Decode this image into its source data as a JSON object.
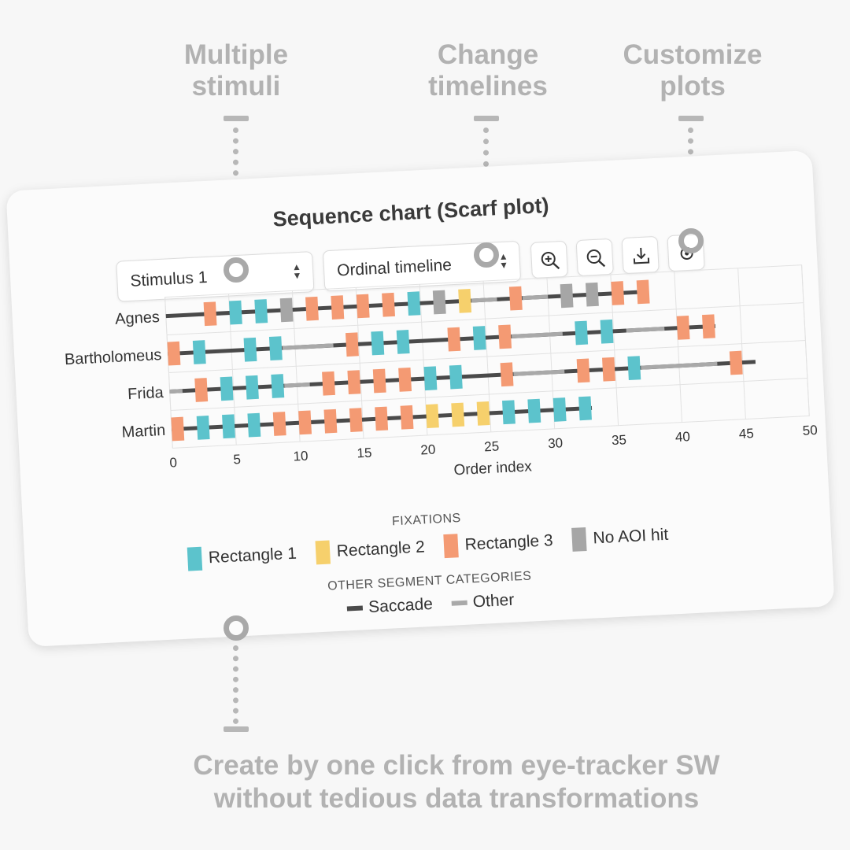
{
  "callouts": {
    "multiple": [
      "Multiple",
      "stimuli"
    ],
    "change": [
      "Change",
      "timelines"
    ],
    "customize": [
      "Customize",
      "plots"
    ],
    "bottom": [
      "Create by one click from eye-tracker SW",
      "without tedious data transformations"
    ]
  },
  "card": {
    "title": "Sequence chart (Scarf plot)",
    "stimulus_select": {
      "value": "Stimulus 1"
    },
    "timeline_select": {
      "value": "Ordinal timeline"
    },
    "buttons": [
      "zoom-in",
      "zoom-out",
      "download",
      "settings"
    ]
  },
  "chart_data": {
    "type": "scarf",
    "xlabel": "Order index",
    "xlim": [
      0,
      50
    ],
    "xticks": [
      0,
      5,
      10,
      15,
      20,
      25,
      30,
      35,
      40,
      45,
      50
    ],
    "participants": [
      "Agnes",
      "Bartholomeus",
      "Frida",
      "Martin"
    ],
    "categories": {
      "r1": {
        "name": "Rectangle 1",
        "color": "#5cc3cc"
      },
      "r2": {
        "name": "Rectangle 2",
        "color": "#f6d06c"
      },
      "r3": {
        "name": "Rectangle 3",
        "color": "#f49a73"
      },
      "na": {
        "name": "No AOI hit",
        "color": "#a6a6a6"
      }
    },
    "segment_categories": {
      "saccade": {
        "name": "Saccade",
        "color": "#4a4a4a"
      },
      "other": {
        "name": "Other",
        "color": "#a9a9a9"
      }
    },
    "rows": [
      {
        "name": "Agnes",
        "end": 37,
        "fixations": [
          [
            3,
            "r3"
          ],
          [
            5,
            "r1"
          ],
          [
            7,
            "r1"
          ],
          [
            9,
            "na"
          ],
          [
            11,
            "r3"
          ],
          [
            13,
            "r3"
          ],
          [
            15,
            "r3"
          ],
          [
            17,
            "r3"
          ],
          [
            19,
            "r1"
          ],
          [
            21,
            "na"
          ],
          [
            23,
            "r2"
          ],
          [
            27,
            "r3"
          ],
          [
            31,
            "na"
          ],
          [
            33,
            "na"
          ],
          [
            35,
            "r3"
          ],
          [
            37,
            "r3"
          ]
        ],
        "other": [
          [
            24,
            26
          ],
          [
            28,
            30
          ]
        ]
      },
      {
        "name": "Bartholomeus",
        "end": 43,
        "fixations": [
          [
            0,
            "r3"
          ],
          [
            2,
            "r1"
          ],
          [
            6,
            "r1"
          ],
          [
            8,
            "r1"
          ],
          [
            14,
            "r3"
          ],
          [
            16,
            "r1"
          ],
          [
            18,
            "r1"
          ],
          [
            22,
            "r3"
          ],
          [
            24,
            "r1"
          ],
          [
            26,
            "r3"
          ],
          [
            32,
            "r1"
          ],
          [
            34,
            "r1"
          ],
          [
            40,
            "r3"
          ],
          [
            42,
            "r3"
          ]
        ],
        "other": [
          [
            9,
            13
          ],
          [
            27,
            31
          ],
          [
            36,
            39
          ]
        ]
      },
      {
        "name": "Frida",
        "end": 46,
        "fixations": [
          [
            2,
            "r3"
          ],
          [
            4,
            "r1"
          ],
          [
            6,
            "r1"
          ],
          [
            8,
            "r1"
          ],
          [
            12,
            "r3"
          ],
          [
            14,
            "r3"
          ],
          [
            16,
            "r3"
          ],
          [
            18,
            "r3"
          ],
          [
            20,
            "r1"
          ],
          [
            22,
            "r1"
          ],
          [
            26,
            "r3"
          ],
          [
            32,
            "r3"
          ],
          [
            34,
            "r3"
          ],
          [
            36,
            "r1"
          ],
          [
            44,
            "r3"
          ]
        ],
        "other": [
          [
            0,
            1
          ],
          [
            9,
            11
          ],
          [
            27,
            31
          ],
          [
            37,
            43
          ]
        ]
      },
      {
        "name": "Martin",
        "end": 33,
        "fixations": [
          [
            0,
            "r3"
          ],
          [
            2,
            "r1"
          ],
          [
            4,
            "r1"
          ],
          [
            6,
            "r1"
          ],
          [
            8,
            "r3"
          ],
          [
            10,
            "r3"
          ],
          [
            12,
            "r3"
          ],
          [
            14,
            "r3"
          ],
          [
            16,
            "r3"
          ],
          [
            18,
            "r3"
          ],
          [
            20,
            "r2"
          ],
          [
            22,
            "r2"
          ],
          [
            24,
            "r2"
          ],
          [
            26,
            "r1"
          ],
          [
            28,
            "r1"
          ],
          [
            30,
            "r1"
          ],
          [
            32,
            "r1"
          ]
        ],
        "other": []
      }
    ],
    "legend": {
      "fixations_title": "FIXATIONS",
      "segments_title": "OTHER SEGMENT CATEGORIES",
      "placement": "bottom"
    }
  }
}
